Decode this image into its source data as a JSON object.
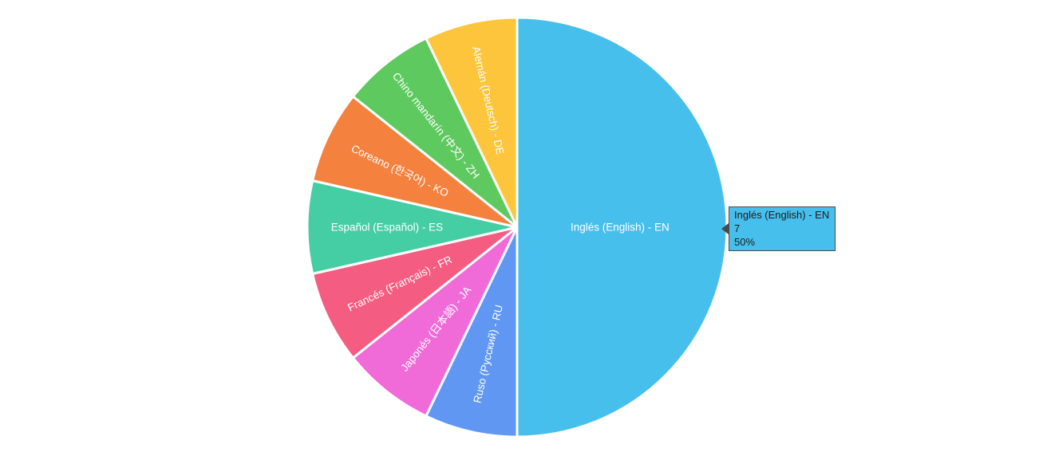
{
  "page": {
    "background_color": "#ffffff"
  },
  "chart_data": {
    "type": "pie",
    "title": "",
    "legend_position": "none",
    "start_angle": "top",
    "direction": "clockwise",
    "total": 14,
    "labels": [
      "Inglés (English) - EN",
      "Ruso (Русский) - RU",
      "Japonés (日本語) - JA",
      "Francés (Français) - FR",
      "Español (Español) - ES",
      "Coreano (한국어) - KO",
      "Chino mandarín (中文) - ZH",
      "Alemán (Deutsch) - DE"
    ],
    "values": [
      7,
      1,
      1,
      1,
      1,
      1,
      1,
      1
    ],
    "percentages": [
      "50%",
      "7.1%",
      "7.1%",
      "7.1%",
      "7.1%",
      "7.1%",
      "7.1%",
      "7.1%"
    ],
    "colors": [
      "#47BFEC",
      "#6097F2",
      "#F16BD8",
      "#F55C82",
      "#45CDA4",
      "#F5813E",
      "#5EC95F",
      "#FDC53B"
    ],
    "slice_border_color": "#ffffff",
    "label_text_color": "#ffffff"
  },
  "tooltip": {
    "title": "Inglés (English) - EN",
    "value": "7",
    "percent": "50%",
    "background_color": "#47BFEC",
    "border_color": "#4a4a4a",
    "text_color": "#1c1c1c"
  }
}
